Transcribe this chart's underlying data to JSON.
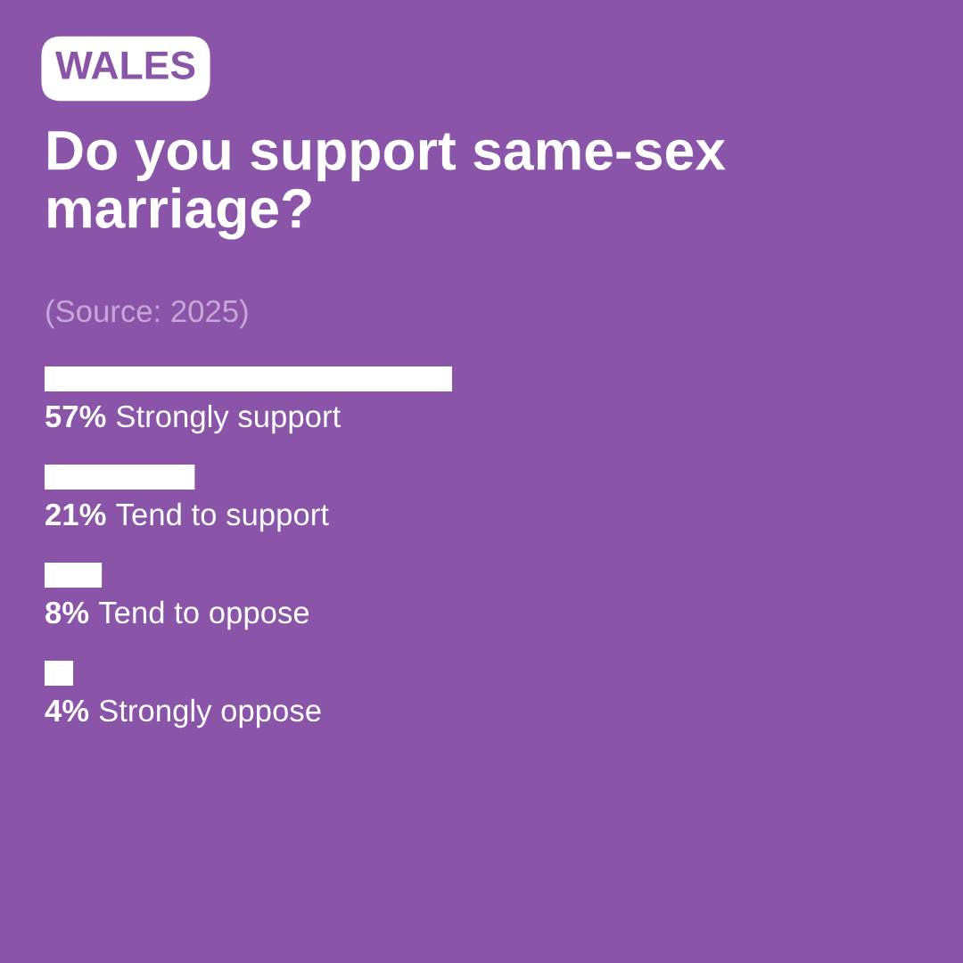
{
  "chart_data": {
    "type": "bar",
    "orientation": "horizontal",
    "subtitle": "WALES",
    "title": "Do you support same-sex marriage?",
    "annotations": [
      "(Source: 2025)"
    ],
    "categories": [
      "Strongly support",
      "Tend to support",
      "Tend to oppose",
      "Strongly oppose"
    ],
    "values": [
      57,
      21,
      8,
      4
    ],
    "value_labels": [
      "57%",
      "21%",
      "8%",
      "4%"
    ],
    "color": "#ffffff",
    "tick_labels": false,
    "grid": false,
    "legend": false
  }
}
